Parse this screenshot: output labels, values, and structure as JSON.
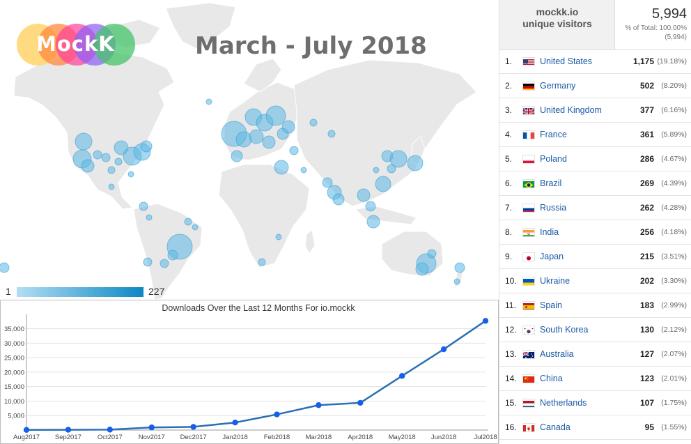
{
  "logo": {
    "text": "MockK",
    "colors": [
      "#ffd36b",
      "#ff8a3d",
      "#ff3f9a",
      "#8b5cf6",
      "#46c46a"
    ]
  },
  "map": {
    "title": "March - July 2018",
    "legend_min": "1",
    "legend_max": "227",
    "land_color": "#e8e8e8",
    "bubble_color": "#5bb8e4"
  },
  "table": {
    "metric_label": "mockk.io\nunique visitors",
    "total_value": "5,994",
    "total_pct": "% of Total: 100.00%",
    "total_abs": "(5,994)",
    "rows": [
      {
        "rank": "1.",
        "flag": "us-flag-icon",
        "country": "United States",
        "count": "1,175",
        "pct": "(19.18%)"
      },
      {
        "rank": "2.",
        "flag": "de-flag-icon",
        "country": "Germany",
        "count": "502",
        "pct": "(8.20%)"
      },
      {
        "rank": "3.",
        "flag": "gb-flag-icon",
        "country": "United Kingdom",
        "count": "377",
        "pct": "(6.16%)"
      },
      {
        "rank": "4.",
        "flag": "fr-flag-icon",
        "country": "France",
        "count": "361",
        "pct": "(5.89%)"
      },
      {
        "rank": "5.",
        "flag": "pl-flag-icon",
        "country": "Poland",
        "count": "286",
        "pct": "(4.67%)"
      },
      {
        "rank": "6.",
        "flag": "br-flag-icon",
        "country": "Brazil",
        "count": "269",
        "pct": "(4.39%)"
      },
      {
        "rank": "7.",
        "flag": "ru-flag-icon",
        "country": "Russia",
        "count": "262",
        "pct": "(4.28%)"
      },
      {
        "rank": "8.",
        "flag": "in-flag-icon",
        "country": "India",
        "count": "256",
        "pct": "(4.18%)"
      },
      {
        "rank": "9.",
        "flag": "jp-flag-icon",
        "country": "Japan",
        "count": "215",
        "pct": "(3.51%)"
      },
      {
        "rank": "10.",
        "flag": "ua-flag-icon",
        "country": "Ukraine",
        "count": "202",
        "pct": "(3.30%)"
      },
      {
        "rank": "11.",
        "flag": "es-flag-icon",
        "country": "Spain",
        "count": "183",
        "pct": "(2.99%)"
      },
      {
        "rank": "12.",
        "flag": "kr-flag-icon",
        "country": "South Korea",
        "count": "130",
        "pct": "(2.12%)"
      },
      {
        "rank": "13.",
        "flag": "au-flag-icon",
        "country": "Australia",
        "count": "127",
        "pct": "(2.07%)"
      },
      {
        "rank": "14.",
        "flag": "cn-flag-icon",
        "country": "China",
        "count": "123",
        "pct": "(2.01%)"
      },
      {
        "rank": "15.",
        "flag": "nl-flag-icon",
        "country": "Netherlands",
        "count": "107",
        "pct": "(1.75%)"
      },
      {
        "rank": "16.",
        "flag": "ca-flag-icon",
        "country": "Canada",
        "count": "95",
        "pct": "(1.55%)"
      }
    ]
  },
  "chart_data": {
    "type": "line",
    "title": "Downloads Over the Last 12 Months For io.mockk",
    "categories": [
      "Aug2017",
      "Sep2017",
      "Oct2017",
      "Nov2017",
      "Dec2017",
      "Jan2018",
      "Feb2018",
      "Mar2018",
      "Apr2018",
      "May2018",
      "Jun2018",
      "Jul2018"
    ],
    "series": [
      {
        "values": [
          50,
          100,
          150,
          900,
          1100,
          2600,
          5400,
          8600,
          9400,
          18700,
          27900,
          37700
        ]
      }
    ],
    "yticks": [
      "5,000",
      "10,000",
      "15,000",
      "20,000",
      "25,000",
      "30,000",
      "35,000"
    ],
    "ylim": [
      0,
      38500
    ],
    "grid": true,
    "line_color": "#2c6fb5",
    "point_color": "#1560e8"
  }
}
